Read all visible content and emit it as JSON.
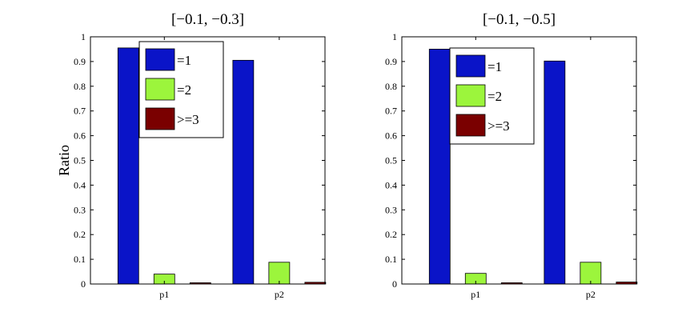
{
  "chart_data": [
    {
      "type": "bar",
      "title": "[−0.1, −0.3]",
      "ylabel": "Ratio",
      "xlabel": "",
      "categories": [
        "p1",
        "p2"
      ],
      "ylim": [
        0,
        1
      ],
      "yticks": [
        "0",
        "0.1",
        "0.2",
        "0.3",
        "0.4",
        "0.5",
        "0.6",
        "0.7",
        "0.8",
        "0.9",
        "1"
      ],
      "grid": false,
      "legend_position": "top-right",
      "series": [
        {
          "name": "=1",
          "color": "#0a14c8",
          "values": [
            0.955,
            0.905
          ]
        },
        {
          "name": "=2",
          "color": "#9cf53c",
          "values": [
            0.04,
            0.088
          ]
        },
        {
          "name": ">=3",
          "color": "#7a0000",
          "values": [
            0.005,
            0.007
          ]
        }
      ]
    },
    {
      "type": "bar",
      "title": "[−0.1, −0.5]",
      "ylabel": "",
      "xlabel": "",
      "categories": [
        "p1",
        "p2"
      ],
      "ylim": [
        0,
        1
      ],
      "yticks": [
        "0",
        "0.1",
        "0.2",
        "0.3",
        "0.4",
        "0.5",
        "0.6",
        "0.7",
        "0.8",
        "0.9",
        "1"
      ],
      "grid": false,
      "legend_position": "top-right",
      "series": [
        {
          "name": "=1",
          "color": "#0a14c8",
          "values": [
            0.95,
            0.902
          ]
        },
        {
          "name": "=2",
          "color": "#9cf53c",
          "values": [
            0.043,
            0.088
          ]
        },
        {
          "name": ">=3",
          "color": "#7a0000",
          "values": [
            0.005,
            0.008
          ]
        }
      ]
    }
  ]
}
